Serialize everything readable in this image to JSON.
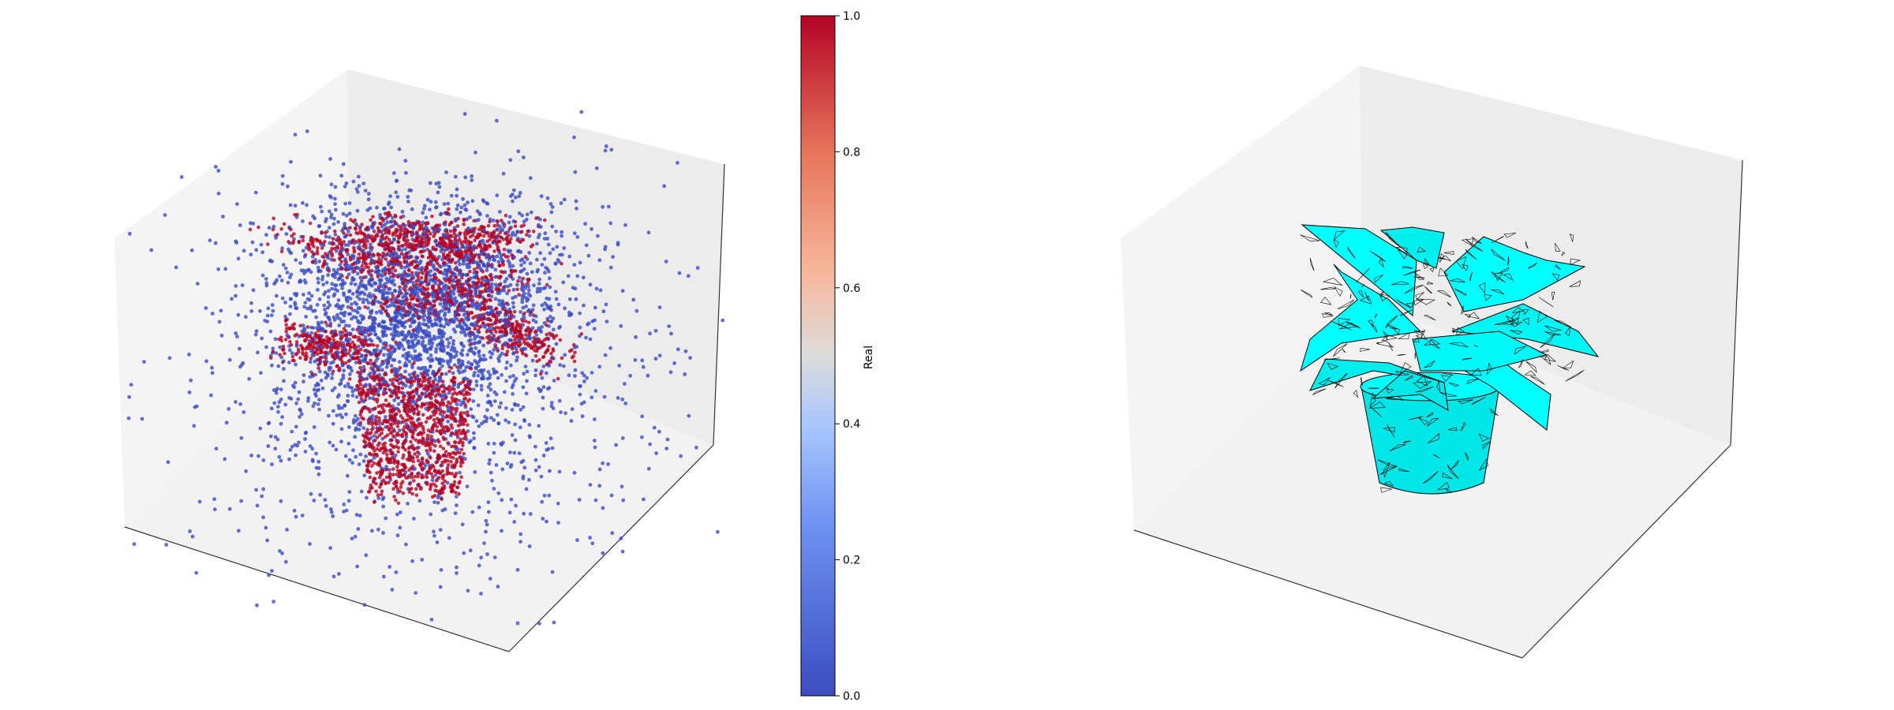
{
  "chart_data": [
    {
      "type": "scatter",
      "projection": "3d",
      "title": "",
      "axes_ticks": "hidden",
      "grid": false,
      "colormap": "coolwarm",
      "colormap_colors": [
        "#3b4cc0",
        "#aac7fd",
        "#dddcdc",
        "#f7b89c",
        "#b40426"
      ],
      "description_point_classes": [
        0,
        1
      ],
      "colorbar": {
        "label": "Real",
        "range": [
          0.0,
          1.0
        ],
        "ticks": [
          "0.0",
          "0.2",
          "0.4",
          "0.6",
          "0.8",
          "1.0"
        ],
        "tick_values": [
          0.0,
          0.2,
          0.4,
          0.6,
          0.8,
          1.0
        ]
      }
    },
    {
      "type": "surface",
      "projection": "3d",
      "title": "",
      "axes_ticks": "hidden",
      "grid": false,
      "face_color": "#00ffff",
      "edge_color": "#000000"
    }
  ]
}
